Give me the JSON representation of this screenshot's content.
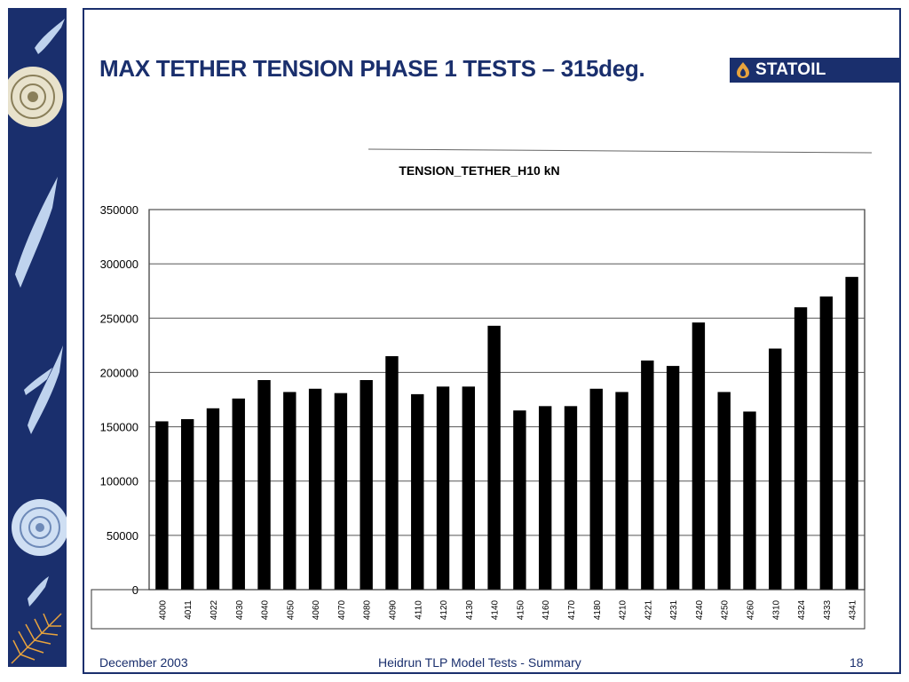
{
  "slide": {
    "title": "MAX TETHER TENSION PHASE 1 TESTS – 315deg.",
    "logo_text": "STATOIL",
    "footer_left": "December 2003",
    "footer_center": "Heidrun TLP Model Tests - Summary",
    "footer_right": "18"
  },
  "colors": {
    "navy": "#1a2f6d",
    "logo_flame": "#e8a33d",
    "decor": "#bfd3ee",
    "bar": "#000000"
  },
  "icons": [
    "ammonite-shell-icon",
    "fish-icon",
    "fern-icon",
    "statoil-flame-icon"
  ],
  "chart_data": {
    "type": "bar",
    "title": "TENSION_TETHER_H10   kN",
    "xlabel": "",
    "ylabel": "",
    "ylim": [
      0,
      350000
    ],
    "yticks": [
      0,
      50000,
      100000,
      150000,
      200000,
      250000,
      300000,
      350000
    ],
    "grid": true,
    "categories": [
      "4000",
      "4011",
      "4022",
      "4030",
      "4040",
      "4050",
      "4060",
      "4070",
      "4080",
      "4090",
      "4110",
      "4120",
      "4130",
      "4140",
      "4150",
      "4160",
      "4170",
      "4180",
      "4210",
      "4221",
      "4231",
      "4240",
      "4250",
      "4260",
      "4310",
      "4324",
      "4333",
      "4341"
    ],
    "values": [
      155000,
      157000,
      167000,
      176000,
      193000,
      182000,
      185000,
      181000,
      193000,
      215000,
      180000,
      187000,
      187000,
      243000,
      165000,
      169000,
      169000,
      185000,
      182000,
      211000,
      206000,
      246000,
      182000,
      164000,
      222000,
      260000,
      270000,
      288000
    ]
  }
}
